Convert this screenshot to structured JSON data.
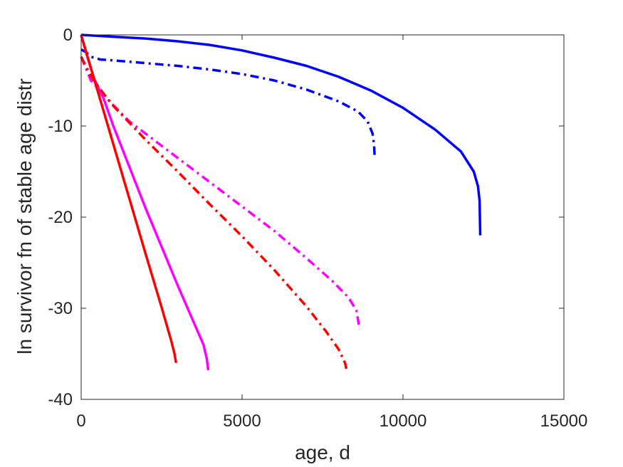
{
  "chart_data": {
    "type": "line",
    "title": "",
    "xlabel": "age, d",
    "ylabel": "ln survivor fn of stable age distr",
    "xlim": [
      0,
      15000
    ],
    "ylim": [
      -40,
      0
    ],
    "xticks": [
      0,
      5000,
      10000,
      15000
    ],
    "yticks": [
      -40,
      -30,
      -20,
      -10,
      0
    ],
    "xtick_labels": [
      "0",
      "5000",
      "10000",
      "15000"
    ],
    "ytick_labels": [
      "-40",
      "-30",
      "-20",
      "-10",
      "0"
    ],
    "grid": false,
    "legend": "none",
    "series": [
      {
        "color": "#0000ff",
        "style": "solid",
        "points": [
          [
            0,
            0
          ],
          [
            1000,
            -0.2
          ],
          [
            2000,
            -0.4
          ],
          [
            3000,
            -0.7
          ],
          [
            4000,
            -1.1
          ],
          [
            5000,
            -1.7
          ],
          [
            6000,
            -2.5
          ],
          [
            7000,
            -3.4
          ],
          [
            8000,
            -4.6
          ],
          [
            9000,
            -6.1
          ],
          [
            10000,
            -8.0
          ],
          [
            11000,
            -10.4
          ],
          [
            11800,
            -12.8
          ],
          [
            12200,
            -15.0
          ],
          [
            12330,
            -16.6
          ],
          [
            12380,
            -18.2
          ],
          [
            12390,
            -20.0
          ],
          [
            12400,
            -22.0
          ]
        ]
      },
      {
        "color": "#0000ff",
        "style": "dashdot",
        "points": [
          [
            0,
            -1.6
          ],
          [
            150,
            -1.9
          ],
          [
            300,
            -2.4
          ],
          [
            600,
            -2.7
          ],
          [
            1000,
            -2.8
          ],
          [
            2000,
            -3.1
          ],
          [
            3000,
            -3.4
          ],
          [
            4000,
            -3.8
          ],
          [
            5000,
            -4.3
          ],
          [
            6000,
            -5.0
          ],
          [
            7000,
            -6.0
          ],
          [
            8000,
            -7.3
          ],
          [
            8600,
            -8.4
          ],
          [
            8900,
            -9.5
          ],
          [
            9050,
            -10.8
          ],
          [
            9100,
            -12.0
          ],
          [
            9120,
            -13.3
          ]
        ]
      },
      {
        "color": "#ff00ff",
        "style": "solid",
        "points": [
          [
            0,
            0
          ],
          [
            200,
            -2.5
          ],
          [
            400,
            -4.8
          ],
          [
            700,
            -7.0
          ],
          [
            1000,
            -10.0
          ],
          [
            2000,
            -19.0
          ],
          [
            3000,
            -27.5
          ],
          [
            3800,
            -34.0
          ],
          [
            3900,
            -35.5
          ],
          [
            3950,
            -36.8
          ]
        ]
      },
      {
        "color": "#ff00ff",
        "style": "dashdot",
        "points": [
          [
            0,
            -2.4
          ],
          [
            300,
            -5.0
          ],
          [
            800,
            -7.0
          ],
          [
            1500,
            -9.5
          ],
          [
            3000,
            -13.5
          ],
          [
            4500,
            -17.5
          ],
          [
            6000,
            -21.5
          ],
          [
            7000,
            -24.5
          ],
          [
            7800,
            -27.0
          ],
          [
            8300,
            -28.8
          ],
          [
            8550,
            -30.2
          ],
          [
            8650,
            -32.3
          ]
        ]
      },
      {
        "color": "#ff0000",
        "style": "solid",
        "points": [
          [
            0,
            0
          ],
          [
            500,
            -6.0
          ],
          [
            1000,
            -12.0
          ],
          [
            1500,
            -18.0
          ],
          [
            2000,
            -24.0
          ],
          [
            2500,
            -29.9
          ],
          [
            2800,
            -33.6
          ],
          [
            2900,
            -35.0
          ],
          [
            2950,
            -36.0
          ]
        ]
      },
      {
        "color": "#ff0000",
        "style": "dashdot",
        "points": [
          [
            0,
            -2.4
          ],
          [
            300,
            -4.5
          ],
          [
            600,
            -6.0
          ],
          [
            1000,
            -7.8
          ],
          [
            2000,
            -11.5
          ],
          [
            3000,
            -15.0
          ],
          [
            4000,
            -18.6
          ],
          [
            5000,
            -22.1
          ],
          [
            6000,
            -25.8
          ],
          [
            7000,
            -29.8
          ],
          [
            7600,
            -32.5
          ],
          [
            8000,
            -34.5
          ],
          [
            8200,
            -36.0
          ],
          [
            8250,
            -36.8
          ]
        ]
      }
    ]
  }
}
